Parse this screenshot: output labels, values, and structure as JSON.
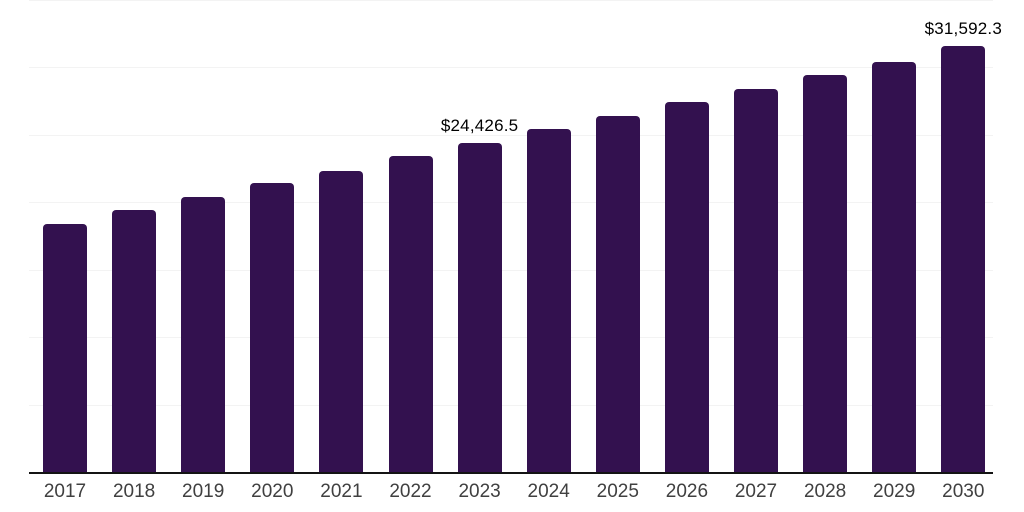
{
  "chart_data": {
    "type": "bar",
    "title": "",
    "xlabel": "",
    "ylabel": "",
    "categories": [
      "2017",
      "2018",
      "2019",
      "2020",
      "2021",
      "2022",
      "2023",
      "2024",
      "2025",
      "2026",
      "2027",
      "2028",
      "2029",
      "2030"
    ],
    "values": [
      18400,
      19450,
      20400,
      21450,
      22350,
      23450,
      24426.5,
      25450,
      26400,
      27450,
      28400,
      29450,
      30400,
      31592.3
    ],
    "data_labels": [
      {
        "category": "2023",
        "text": "$24,426.5"
      },
      {
        "category": "2030",
        "text": "$31,592.3"
      }
    ],
    "ylim": [
      0,
      35000
    ],
    "gridline_interval": 5000,
    "grid": "horizontal",
    "legend_position": "none",
    "y_tick_labels_visible": false,
    "colors": {
      "bar": "#33114f",
      "gridline": "#f3f3f3",
      "axis_line": "#141414",
      "x_tick_label": "#404040",
      "data_label": "#000000",
      "background": "#ffffff"
    }
  }
}
